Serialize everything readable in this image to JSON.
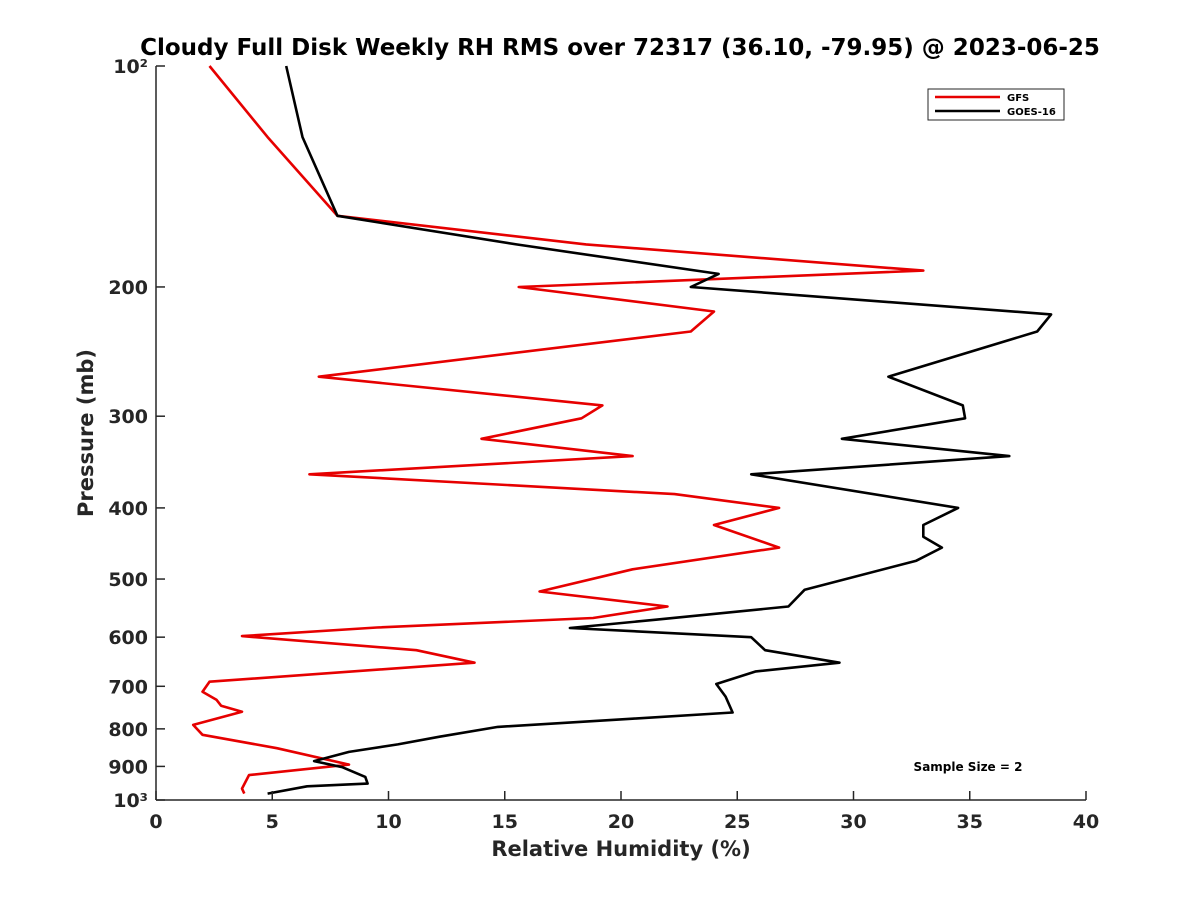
{
  "chart_data": {
    "type": "line",
    "title": "Cloudy Full Disk Weekly RH RMS over 72317 (36.10, -79.95) @ 2023-06-25",
    "xlabel": "Relative Humidity (%)",
    "ylabel": "Pressure (mb)",
    "xlim": [
      0,
      40
    ],
    "ylim": [
      100,
      1000
    ],
    "y_scale": "log",
    "y_reversed": true,
    "x_ticks": [
      "0",
      "5",
      "10",
      "15",
      "20",
      "25",
      "30",
      "35",
      "40"
    ],
    "y_ticks": [
      {
        "value": 100,
        "label": "10²"
      },
      {
        "value": 200,
        "label": "200"
      },
      {
        "value": 300,
        "label": "300"
      },
      {
        "value": 400,
        "label": "400"
      },
      {
        "value": 500,
        "label": "500"
      },
      {
        "value": 600,
        "label": "600"
      },
      {
        "value": 700,
        "label": "700"
      },
      {
        "value": 800,
        "label": "800"
      },
      {
        "value": 900,
        "label": "900"
      },
      {
        "value": 1000,
        "label": "10³"
      }
    ],
    "grid": false,
    "legend_position": "top-right",
    "annotation": "Sample Size = 2",
    "series": [
      {
        "name": "GFS",
        "color": "#e60000",
        "points": [
          [
            2.3,
            100
          ],
          [
            4.8,
            125
          ],
          [
            7.8,
            160
          ],
          [
            18.5,
            175
          ],
          [
            33.0,
            190
          ],
          [
            15.6,
            200
          ],
          [
            24.0,
            216
          ],
          [
            23.0,
            230
          ],
          [
            7.0,
            265
          ],
          [
            19.2,
            290
          ],
          [
            18.3,
            302
          ],
          [
            14.0,
            322
          ],
          [
            20.5,
            340
          ],
          [
            6.6,
            360
          ],
          [
            22.3,
            383
          ],
          [
            26.8,
            400
          ],
          [
            24.0,
            422
          ],
          [
            26.8,
            453
          ],
          [
            20.5,
            485
          ],
          [
            16.5,
            520
          ],
          [
            22.0,
            545
          ],
          [
            18.8,
            565
          ],
          [
            9.5,
            582
          ],
          [
            3.7,
            598
          ],
          [
            11.2,
            625
          ],
          [
            13.7,
            650
          ],
          [
            2.3,
            690
          ],
          [
            2.0,
            712
          ],
          [
            2.6,
            730
          ],
          [
            2.8,
            744
          ],
          [
            3.7,
            758
          ],
          [
            1.6,
            790
          ],
          [
            2.0,
            815
          ],
          [
            5.2,
            850
          ],
          [
            8.3,
            895
          ],
          [
            4.0,
            925
          ],
          [
            3.7,
            965
          ],
          [
            3.8,
            980
          ]
        ]
      },
      {
        "name": "GOES-16",
        "color": "#000000",
        "points": [
          [
            5.6,
            100
          ],
          [
            6.3,
            125
          ],
          [
            7.8,
            160
          ],
          [
            15.5,
            175
          ],
          [
            24.2,
            192
          ],
          [
            23.0,
            200
          ],
          [
            38.5,
            218
          ],
          [
            37.9,
            230
          ],
          [
            31.5,
            265
          ],
          [
            34.7,
            290
          ],
          [
            34.8,
            302
          ],
          [
            29.5,
            322
          ],
          [
            36.7,
            340
          ],
          [
            25.6,
            360
          ],
          [
            34.5,
            400
          ],
          [
            33.0,
            422
          ],
          [
            33.0,
            438
          ],
          [
            33.8,
            453
          ],
          [
            32.7,
            472
          ],
          [
            27.9,
            517
          ],
          [
            27.2,
            545
          ],
          [
            21.5,
            568
          ],
          [
            17.8,
            583
          ],
          [
            25.6,
            600
          ],
          [
            26.2,
            625
          ],
          [
            29.4,
            650
          ],
          [
            25.8,
            668
          ],
          [
            24.1,
            695
          ],
          [
            24.5,
            723
          ],
          [
            24.8,
            760
          ],
          [
            20.5,
            775
          ],
          [
            14.7,
            795
          ],
          [
            12.2,
            820
          ],
          [
            10.4,
            840
          ],
          [
            8.3,
            860
          ],
          [
            6.8,
            885
          ],
          [
            8.0,
            902
          ],
          [
            9.0,
            930
          ],
          [
            9.1,
            950
          ],
          [
            6.5,
            958
          ],
          [
            4.8,
            980
          ]
        ]
      }
    ]
  }
}
